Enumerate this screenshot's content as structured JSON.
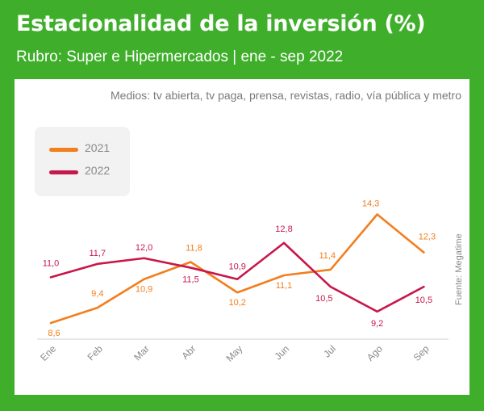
{
  "header": {
    "title": "Estacionalidad de la inversión (%)",
    "subtitle": "Rubro: Super e Hipermercados | ene - sep 2022"
  },
  "note": "Medios: tv abierta, tv paga, prensa, revistas, radio, vía pública y metro",
  "source": "Fuente: Megatime",
  "colors": {
    "frame": "#3fae2a",
    "s2021": "#f37e1e",
    "s2022": "#c8174a"
  },
  "chart_data": {
    "type": "line",
    "categories": [
      "Ene",
      "Feb",
      "Mar",
      "Abr",
      "May",
      "Jun",
      "Jul",
      "Ago",
      "Sep"
    ],
    "series": [
      {
        "name": "2021",
        "values": [
          8.6,
          9.4,
          10.9,
          11.8,
          10.2,
          11.1,
          11.4,
          14.3,
          12.3
        ],
        "labels": [
          "8,6",
          "9,4",
          "10,9",
          "11,8",
          "10,2",
          "11,1",
          "11,4",
          "14,3",
          "12,3"
        ]
      },
      {
        "name": "2022",
        "values": [
          11.0,
          11.7,
          12.0,
          11.5,
          10.9,
          12.8,
          10.5,
          9.2,
          10.5
        ],
        "labels": [
          "11,0",
          "11,7",
          "12,0",
          "11,5",
          "10,9",
          "12,8",
          "10,5",
          "9,2",
          "10,5"
        ]
      }
    ],
    "legend": "top-left",
    "grid": false
  }
}
